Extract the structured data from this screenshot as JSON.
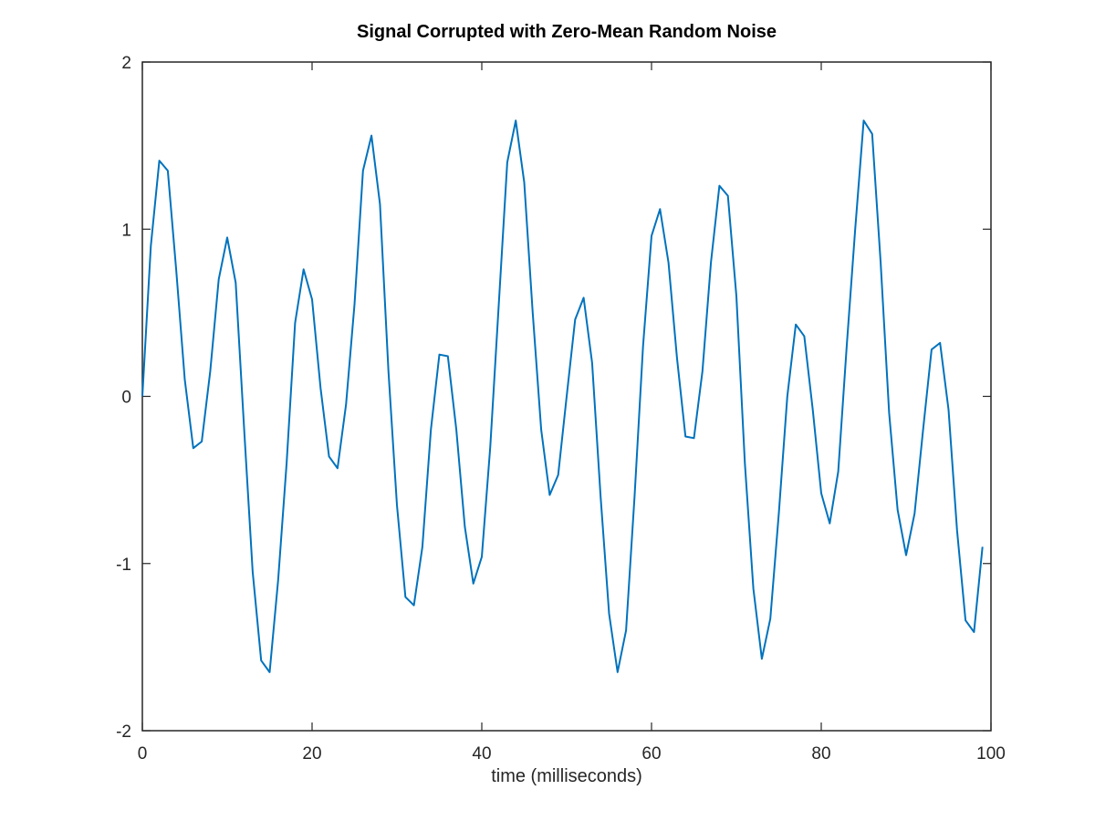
{
  "chart_data": {
    "type": "line",
    "title": "Signal Corrupted with Zero-Mean Random Noise",
    "xlabel": "time (milliseconds)",
    "ylabel": "",
    "xlim": [
      0,
      100
    ],
    "ylim": [
      -2,
      2
    ],
    "xticks": [
      0,
      20,
      40,
      60,
      80,
      100
    ],
    "yticks": [
      -2,
      -1,
      0,
      1,
      2
    ],
    "grid": false,
    "box": true,
    "series": [
      {
        "color": "#0072bd",
        "x": [
          0,
          1,
          2,
          3,
          4,
          5,
          6,
          7,
          8,
          9,
          10,
          11,
          12,
          13,
          14,
          15,
          16,
          17,
          18,
          19,
          20,
          21,
          22,
          23,
          24,
          25,
          26,
          27,
          28,
          29,
          30,
          31,
          32,
          33,
          34,
          35,
          36,
          37,
          38,
          39,
          40,
          41,
          42,
          43,
          44,
          45,
          46,
          47,
          48,
          49,
          50,
          51,
          52,
          53,
          54,
          55,
          56,
          57,
          58,
          59,
          60,
          61,
          62,
          63,
          64,
          65,
          66,
          67,
          68,
          69,
          70,
          71,
          72,
          73,
          74,
          75,
          76,
          77,
          78,
          79,
          80,
          81,
          82,
          83,
          84,
          85,
          86,
          87,
          88,
          89,
          90,
          91,
          92,
          93,
          94,
          95,
          96,
          97,
          98,
          99
        ],
        "values": [
          0.0,
          0.9,
          1.41,
          1.35,
          0.75,
          0.1,
          -0.31,
          -0.27,
          0.15,
          0.7,
          0.95,
          0.68,
          -0.2,
          -1.05,
          -1.58,
          -1.65,
          -1.1,
          -0.4,
          0.44,
          0.76,
          0.58,
          0.05,
          -0.36,
          -0.43,
          -0.05,
          0.55,
          1.35,
          1.56,
          1.15,
          0.15,
          -0.65,
          -1.2,
          -1.25,
          -0.9,
          -0.2,
          0.25,
          0.24,
          -0.2,
          -0.78,
          -1.12,
          -0.96,
          -0.3,
          0.55,
          1.4,
          1.65,
          1.28,
          0.5,
          -0.2,
          -0.59,
          -0.47,
          0.0,
          0.46,
          0.59,
          0.2,
          -0.6,
          -1.3,
          -1.65,
          -1.4,
          -0.6,
          0.3,
          0.96,
          1.12,
          0.8,
          0.23,
          -0.24,
          -0.25,
          0.15,
          0.8,
          1.26,
          1.2,
          0.6,
          -0.4,
          -1.15,
          -1.57,
          -1.33,
          -0.7,
          0.0,
          0.43,
          0.36,
          -0.08,
          -0.58,
          -0.76,
          -0.45,
          0.3,
          1.0,
          1.65,
          1.57,
          0.8,
          -0.1,
          -0.68,
          -0.95,
          -0.7,
          -0.2,
          0.28,
          0.32,
          -0.08,
          -0.8,
          -1.34,
          -1.41,
          -0.9
        ]
      }
    ]
  }
}
